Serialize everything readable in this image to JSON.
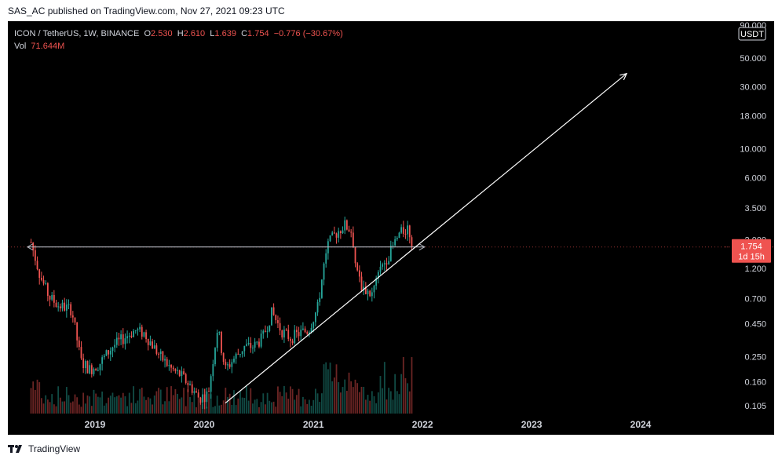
{
  "publisher": "SAS_AC published on TradingView.com, Nov 27, 2021 09:23 UTC",
  "brand": "TradingView",
  "legend": {
    "symbol": "ICON / TetherUS, 1W, BINANCE",
    "o_label": "O",
    "o_value": "2.530",
    "h_label": "H",
    "h_value": "2.610",
    "l_label": "L",
    "l_value": "1.639",
    "c_label": "C",
    "c_value": "1.754",
    "change": "−0.776 (−30.67%)",
    "vol_label": "Vol",
    "vol_value": "71.644M"
  },
  "price_axis": {
    "currency": "USDT",
    "last_price": "1.754",
    "countdown": "1d 15h"
  },
  "colors": {
    "background": "#000000",
    "up": "#26a69a",
    "down": "#ef5350",
    "text": "#d1d4dc",
    "drawing": "#ffffff"
  },
  "chart_data": {
    "type": "candlestick",
    "symbol": "ICON / TetherUS",
    "interval": "1W",
    "exchange": "BINANCE",
    "y_scale": "log",
    "y_ticks": [
      "90.000",
      "50.000",
      "30.000",
      "18.000",
      "10.000",
      "6.000",
      "3.500",
      "2.000",
      "1.200",
      "0.700",
      "0.450",
      "0.250",
      "0.160",
      "0.105"
    ],
    "x_ticks": [
      "2019",
      "2020",
      "2021",
      "2022",
      "2023",
      "2024"
    ],
    "grid": false,
    "last_price": 1.754,
    "price_path": [
      [
        "2018-06-01",
        1.9
      ],
      [
        "2018-07-01",
        1.05
      ],
      [
        "2018-08-01",
        0.72
      ],
      [
        "2018-09-01",
        0.62
      ],
      [
        "2018-10-15",
        0.58
      ],
      [
        "2018-11-15",
        0.23
      ],
      [
        "2018-12-15",
        0.2
      ],
      [
        "2019-01-15",
        0.22
      ],
      [
        "2019-03-01",
        0.3
      ],
      [
        "2019-04-15",
        0.36
      ],
      [
        "2019-05-15",
        0.4
      ],
      [
        "2019-06-15",
        0.38
      ],
      [
        "2019-07-15",
        0.3
      ],
      [
        "2019-08-15",
        0.24
      ],
      [
        "2019-09-15",
        0.2
      ],
      [
        "2019-10-15",
        0.18
      ],
      [
        "2019-11-15",
        0.15
      ],
      [
        "2019-12-15",
        0.12
      ],
      [
        "2020-01-15",
        0.13
      ],
      [
        "2020-02-15",
        0.42
      ],
      [
        "2020-03-12",
        0.2
      ],
      [
        "2020-04-15",
        0.25
      ],
      [
        "2020-05-15",
        0.3
      ],
      [
        "2020-06-15",
        0.3
      ],
      [
        "2020-07-15",
        0.35
      ],
      [
        "2020-08-15",
        0.55
      ],
      [
        "2020-09-15",
        0.4
      ],
      [
        "2020-10-15",
        0.35
      ],
      [
        "2020-11-15",
        0.38
      ],
      [
        "2020-12-15",
        0.4
      ],
      [
        "2021-01-15",
        0.6
      ],
      [
        "2021-02-15",
        1.8
      ],
      [
        "2021-03-15",
        2.2
      ],
      [
        "2021-04-15",
        2.6
      ],
      [
        "2021-05-10",
        2.3
      ],
      [
        "2021-05-25",
        1.1
      ],
      [
        "2021-06-15",
        0.85
      ],
      [
        "2021-07-15",
        0.75
      ],
      [
        "2021-08-15",
        1.2
      ],
      [
        "2021-09-15",
        1.6
      ],
      [
        "2021-10-15",
        2.2
      ],
      [
        "2021-11-15",
        2.5
      ],
      [
        "2021-11-27",
        1.754
      ]
    ],
    "volume_scale": "relative 0–1",
    "horizontal_ray": {
      "price": 1.754,
      "from": "2018-05-20",
      "to": "2022-01-08"
    },
    "trend_line": {
      "from": [
        "2020-03-12",
        0.11
      ],
      "to": [
        "2023-11-15",
        38
      ]
    }
  }
}
